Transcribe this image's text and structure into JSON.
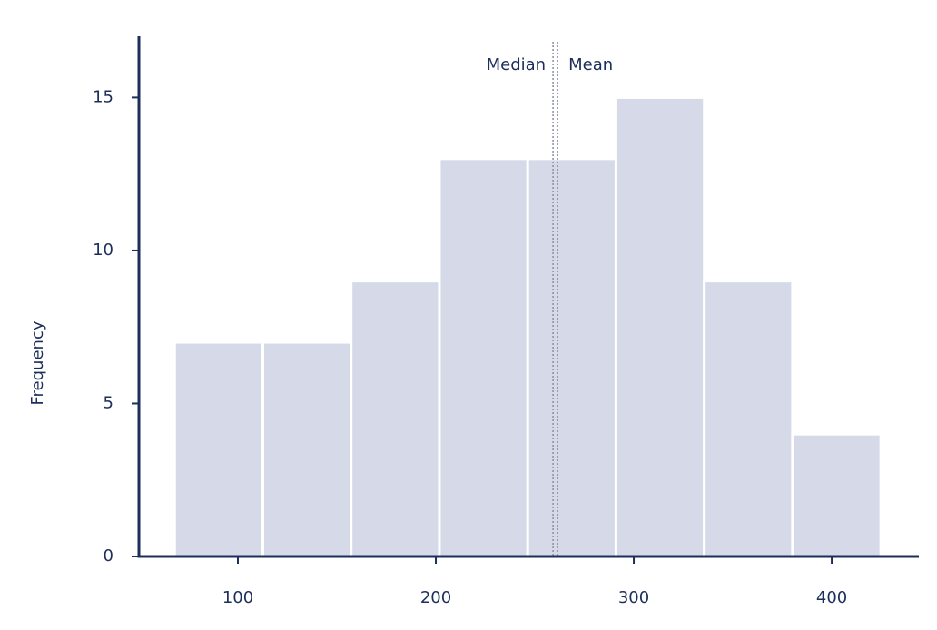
{
  "chart_data": {
    "type": "histogram",
    "y_label": "Frequency",
    "bins": [
      68,
      112.6,
      157.2,
      201.8,
      246.4,
      291,
      335.6,
      380.2,
      424.8
    ],
    "values": [
      7,
      7,
      9,
      13,
      13,
      15,
      9,
      4
    ],
    "color": "#d5d9e8",
    "xlim": [
      50,
      444
    ],
    "xticks": [
      100,
      200,
      300,
      400
    ],
    "ylim": [
      0,
      17
    ],
    "yticks": [
      0,
      5,
      10,
      15
    ],
    "lines": [
      {
        "label": "Median",
        "value": 259.2
      },
      {
        "label": "Mean",
        "value": 261.5
      }
    ]
  }
}
